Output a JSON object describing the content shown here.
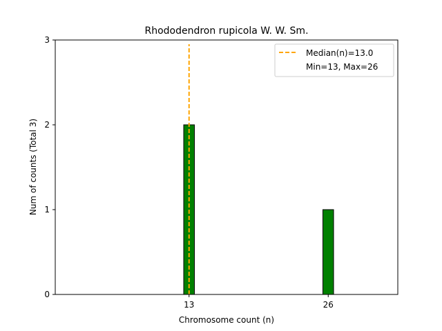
{
  "chart_data": {
    "type": "bar",
    "title": "Rhododendron rupicola W. W. Sm.",
    "xlabel": "Chromosome count (n)",
    "ylabel": "Num of counts     (Total 3)",
    "x": [
      13,
      26
    ],
    "values": [
      2,
      1
    ],
    "xticks": [
      13,
      26
    ],
    "yticks": [
      0,
      1,
      2,
      3
    ],
    "xlim": [
      0.5,
      32.5
    ],
    "ylim": [
      0,
      3
    ],
    "bar_width": 1,
    "bar_color": "#008000",
    "bar_edge_color": "#000000",
    "median": 13.0,
    "median_color": "#FFA500",
    "legend": {
      "position": "top-right",
      "entries": [
        "Median(n)=13.0",
        "Min=13, Max=26"
      ]
    }
  }
}
